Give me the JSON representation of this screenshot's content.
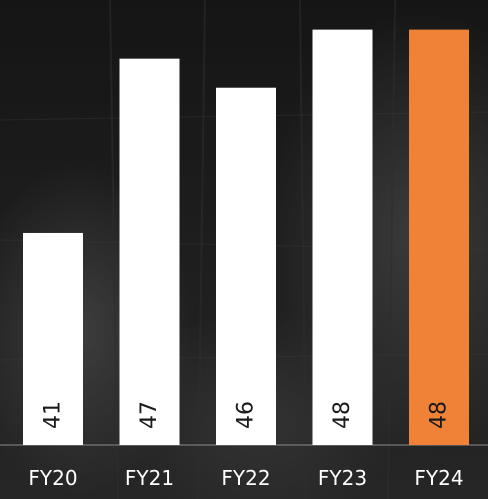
{
  "chart_data": {
    "type": "bar",
    "categories": [
      "FY20",
      "FY21",
      "FY22",
      "FY23",
      "FY24"
    ],
    "values": [
      41,
      47,
      46,
      48,
      48
    ],
    "title": "",
    "xlabel": "",
    "ylabel": "",
    "ylim": [
      33.7,
      48.4
    ],
    "grid": false,
    "legend": "none",
    "highlight_index": 4
  },
  "colors": {
    "bar": "#ffffff",
    "highlight": "#f08238",
    "value_text": "#1a1a1a",
    "tick_text": "#ffffff",
    "baseline": "#8a8a8a"
  }
}
